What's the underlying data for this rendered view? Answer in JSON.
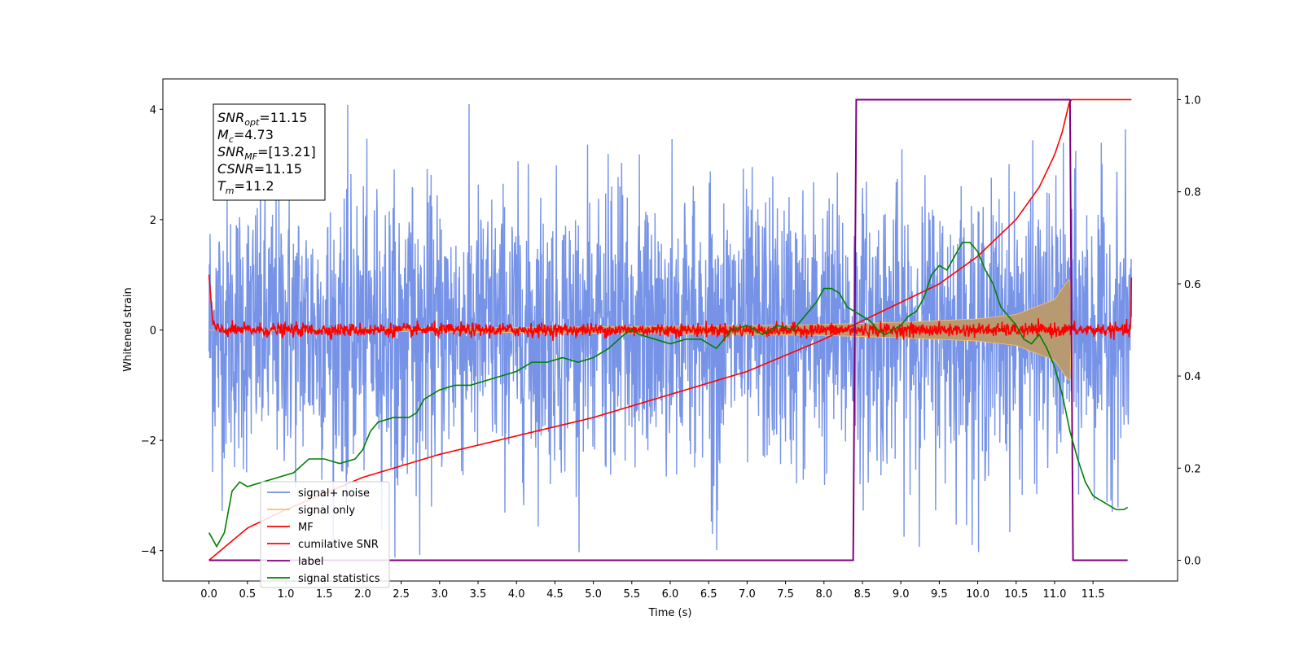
{
  "chart_data": {
    "type": "line",
    "xlabel": "Time (s)",
    "ylabel": "Whitened strain",
    "xlim": [
      -0.6,
      12.6
    ],
    "ylim": [
      -4.55,
      4.55
    ],
    "y2lim": [
      -0.045,
      1.045
    ],
    "xticks": [
      "0.0",
      "0.5",
      "1.0",
      "1.5",
      "2.0",
      "2.5",
      "3.0",
      "3.5",
      "4.0",
      "4.5",
      "5.0",
      "5.5",
      "6.0",
      "6.5",
      "7.0",
      "7.5",
      "8.0",
      "8.5",
      "9.0",
      "9.5",
      "10.0",
      "10.5",
      "11.0",
      "11.5"
    ],
    "yticks": [
      -4,
      -2,
      0,
      2,
      4
    ],
    "y2ticks": [
      0.0,
      0.2,
      0.4,
      0.6,
      0.8,
      1.0
    ],
    "annotation": [
      {
        "base": "SNR",
        "sub": "opt",
        "value": "=11.15"
      },
      {
        "base": "M",
        "sub": "c",
        "value": "=4.73"
      },
      {
        "base": "SNR",
        "sub": "MF",
        "value": "=[13.21]"
      },
      {
        "base": "CSNR",
        "sub": "",
        "value": "=11.15"
      },
      {
        "base": "T",
        "sub": "m",
        "value": "=11.2"
      }
    ],
    "legend_position": "bottom-left",
    "series": [
      {
        "name": "signal+ noise",
        "color": "#6f8de6",
        "axis": "left",
        "kind": "noise",
        "x_range": [
          0.0,
          12.0
        ],
        "y_range": [
          -4.15,
          4.1
        ]
      },
      {
        "name": "signal only",
        "color": "#ffc066",
        "axis": "left",
        "kind": "chirp",
        "x": [
          0.0,
          7.0,
          8.0,
          9.0,
          10.0,
          10.5,
          11.0,
          11.1,
          11.2,
          11.22
        ],
        "envelope": [
          0.0,
          0.08,
          0.1,
          0.14,
          0.2,
          0.28,
          0.55,
          0.75,
          0.95,
          0.0
        ]
      },
      {
        "name": "MF",
        "color": "#ff0000",
        "axis": "left",
        "kind": "mf",
        "x": [
          0.0,
          0.05,
          12.0
        ],
        "baseline": 0.0,
        "noise_amplitude": 0.12,
        "start": 1.0,
        "end": 0.95
      },
      {
        "name": "cumilative SNR",
        "color": "#ff0000",
        "axis": "right",
        "x": [
          0.0,
          0.5,
          1.0,
          2.0,
          3.0,
          4.0,
          5.0,
          6.0,
          7.0,
          8.0,
          8.5,
          9.0,
          9.5,
          10.0,
          10.5,
          10.8,
          11.0,
          11.1,
          11.2,
          12.0
        ],
        "y": [
          0.0,
          0.07,
          0.11,
          0.18,
          0.23,
          0.27,
          0.31,
          0.36,
          0.41,
          0.48,
          0.52,
          0.56,
          0.6,
          0.66,
          0.74,
          0.81,
          0.88,
          0.93,
          1.0,
          1.0
        ]
      },
      {
        "name": "label",
        "color": "#800080",
        "axis": "right",
        "x": [
          0.0,
          8.38,
          8.42,
          11.2,
          11.24,
          11.95
        ],
        "y": [
          0.0,
          0.0,
          1.0,
          1.0,
          0.0,
          0.0
        ]
      },
      {
        "name": "signal statistics",
        "color": "#008000",
        "axis": "right",
        "x": [
          0.0,
          0.1,
          0.2,
          0.3,
          0.4,
          0.5,
          0.7,
          0.9,
          1.1,
          1.3,
          1.5,
          1.7,
          1.9,
          2.0,
          2.1,
          2.2,
          2.4,
          2.6,
          2.7,
          2.8,
          3.0,
          3.2,
          3.4,
          3.6,
          3.8,
          4.0,
          4.2,
          4.4,
          4.6,
          4.8,
          5.0,
          5.2,
          5.4,
          5.5,
          5.6,
          5.8,
          6.0,
          6.2,
          6.4,
          6.6,
          6.8,
          7.0,
          7.2,
          7.4,
          7.6,
          7.8,
          7.9,
          8.0,
          8.1,
          8.2,
          8.3,
          8.4,
          8.5,
          8.6,
          8.7,
          8.8,
          8.9,
          9.0,
          9.1,
          9.2,
          9.3,
          9.4,
          9.5,
          9.6,
          9.7,
          9.8,
          9.9,
          10.0,
          10.1,
          10.2,
          10.3,
          10.4,
          10.5,
          10.6,
          10.7,
          10.8,
          10.9,
          11.0,
          11.1,
          11.2,
          11.3,
          11.4,
          11.5,
          11.6,
          11.7,
          11.8,
          11.9,
          11.95
        ],
        "y": [
          0.06,
          0.03,
          0.06,
          0.15,
          0.17,
          0.16,
          0.17,
          0.18,
          0.19,
          0.22,
          0.22,
          0.21,
          0.22,
          0.24,
          0.28,
          0.3,
          0.31,
          0.31,
          0.32,
          0.35,
          0.37,
          0.38,
          0.38,
          0.39,
          0.4,
          0.41,
          0.43,
          0.43,
          0.44,
          0.43,
          0.44,
          0.46,
          0.49,
          0.5,
          0.49,
          0.48,
          0.47,
          0.48,
          0.48,
          0.46,
          0.5,
          0.51,
          0.49,
          0.51,
          0.5,
          0.54,
          0.56,
          0.59,
          0.59,
          0.58,
          0.55,
          0.54,
          0.53,
          0.52,
          0.5,
          0.49,
          0.5,
          0.51,
          0.53,
          0.54,
          0.57,
          0.62,
          0.64,
          0.63,
          0.66,
          0.69,
          0.69,
          0.67,
          0.63,
          0.6,
          0.55,
          0.53,
          0.51,
          0.48,
          0.47,
          0.49,
          0.46,
          0.42,
          0.36,
          0.28,
          0.22,
          0.17,
          0.14,
          0.13,
          0.12,
          0.11,
          0.11,
          0.115
        ]
      }
    ]
  }
}
